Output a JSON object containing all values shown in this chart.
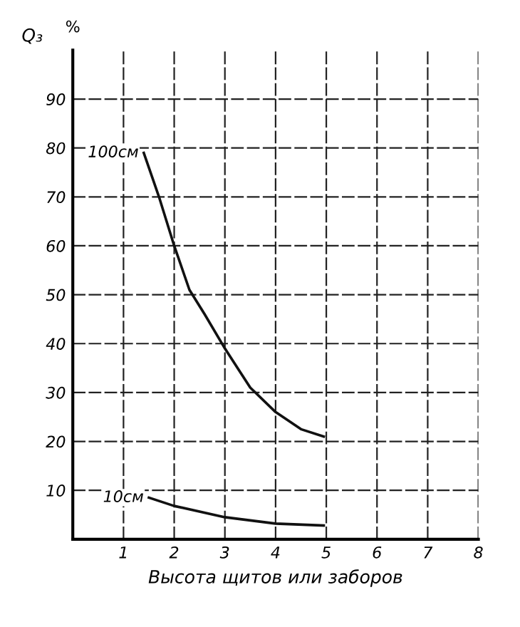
{
  "chart_data": {
    "type": "line",
    "ylabel": "Q₃",
    "xlabel": "Высота щитов или заборов",
    "annotations": [
      "%"
    ],
    "xlim": [
      0,
      8
    ],
    "ylim": [
      0,
      100
    ],
    "xticks": [
      1,
      2,
      3,
      4,
      5,
      6,
      7,
      8
    ],
    "yticks": [
      10,
      20,
      30,
      40,
      50,
      60,
      70,
      80,
      90
    ],
    "grid": true,
    "line_style": "solid",
    "marker": "none",
    "series": [
      {
        "name": "100см",
        "color": "#111111",
        "x": [
          1.4,
          1.7,
          2,
          2.3,
          2.6,
          3,
          3.5,
          4,
          4.5,
          4.95
        ],
        "values": [
          79,
          70,
          60,
          51,
          46,
          39,
          31,
          26,
          22.5,
          21
        ]
      },
      {
        "name": "10см",
        "color": "#111111",
        "x": [
          1.5,
          2,
          3,
          4,
          4.95
        ],
        "values": [
          8.5,
          6.8,
          4.5,
          3.2,
          2.8
        ]
      }
    ]
  }
}
